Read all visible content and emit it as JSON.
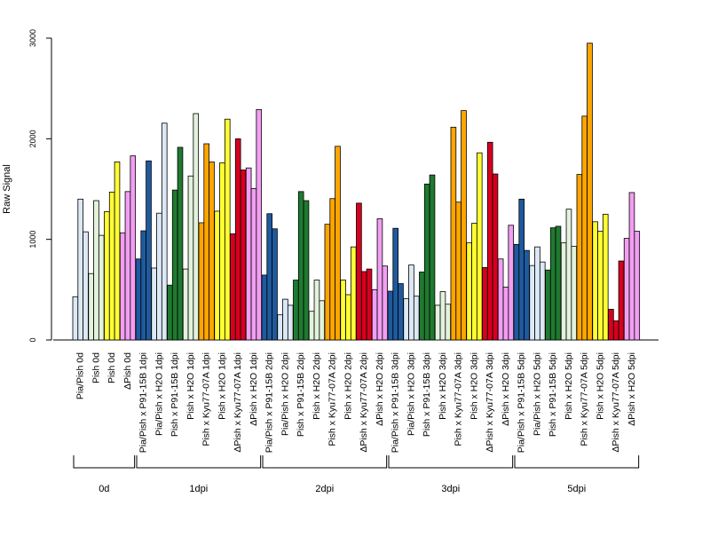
{
  "chart_data": {
    "type": "bar",
    "ylabel": "Raw Signal",
    "ylim": [
      0,
      3000
    ],
    "yticks": [
      "0",
      "1000",
      "2000",
      "3000"
    ],
    "colors": {
      "light_blue": "#dce8f5",
      "dark_blue": "#1f5a9e",
      "green": "#1f7a30",
      "light_green": "#e3f2dc",
      "orange": "#ffa500",
      "yellow": "#ffff33",
      "red": "#d7001e",
      "pink": "#f29ef2"
    },
    "categories": [
      {
        "label": "Pia/Pish 0d",
        "values": [
          430,
          1400,
          1075
        ],
        "color": "light_blue"
      },
      {
        "label": "Pish 0d",
        "values": [
          660,
          1385,
          1040
        ],
        "color": "light_green"
      },
      {
        "label": "Pish 0d",
        "values": [
          1275,
          1470,
          1770
        ],
        "color": "yellow"
      },
      {
        "label": "ΔPish 0d",
        "values": [
          1065,
          1475,
          1830
        ],
        "color": "pink"
      },
      {
        "label": "Pia/Pish x P91-15B 1dpi",
        "values": [
          805,
          1085,
          1780
        ],
        "color": "dark_blue"
      },
      {
        "label": "Pia/Pish x H2O 1dpi",
        "values": [
          715,
          1260,
          2155
        ],
        "color": "light_blue"
      },
      {
        "label": "Pish x P91-15B 1dpi",
        "values": [
          545,
          1490,
          1915
        ],
        "color": "green"
      },
      {
        "label": "Pish x H2O 1dpi",
        "values": [
          705,
          1630,
          2250
        ],
        "color": "light_green"
      },
      {
        "label": "Pish x Kyu77-07A 1dpi",
        "values": [
          1165,
          1950,
          1770
        ],
        "color": "orange"
      },
      {
        "label": "Pish x H2O 1dpi",
        "values": [
          1280,
          1760,
          2195
        ],
        "color": "yellow"
      },
      {
        "label": "ΔPish x Kyu77-07A 1dpi",
        "values": [
          1055,
          2000,
          1690
        ],
        "color": "red"
      },
      {
        "label": "ΔPish x H2O 1dpi",
        "values": [
          1710,
          1505,
          2290
        ],
        "color": "pink"
      },
      {
        "label": "Pia/Pish x P91-15B 2dpi",
        "values": [
          645,
          1255,
          1105
        ],
        "color": "dark_blue"
      },
      {
        "label": "Pia/Pish x H2O 2dpi",
        "values": [
          250,
          405,
          345
        ],
        "color": "light_blue"
      },
      {
        "label": "Pish x P91-15B 2dpi",
        "values": [
          595,
          1475,
          1385
        ],
        "color": "green"
      },
      {
        "label": "Pish x H2O 2dpi",
        "values": [
          285,
          595,
          390
        ],
        "color": "light_green"
      },
      {
        "label": "Pish x Kyu77-07A 2dpi",
        "values": [
          1150,
          1405,
          1925
        ],
        "color": "orange"
      },
      {
        "label": "Pish x H2O 2dpi",
        "values": [
          595,
          450,
          925
        ],
        "color": "yellow"
      },
      {
        "label": "ΔPish x Kyu77-07A 2dpi",
        "values": [
          1360,
          680,
          705
        ],
        "color": "red"
      },
      {
        "label": "ΔPish x H2O 2dpi",
        "values": [
          500,
          1205,
          735
        ],
        "color": "pink"
      },
      {
        "label": "Pia/Pish x P91-15B 3dpi",
        "values": [
          485,
          1110,
          560
        ],
        "color": "dark_blue"
      },
      {
        "label": "Pia/Pish x H2O 3dpi",
        "values": [
          410,
          745,
          435
        ],
        "color": "light_blue"
      },
      {
        "label": "Pish x P91-15B 3dpi",
        "values": [
          675,
          1550,
          1640
        ],
        "color": "green"
      },
      {
        "label": "Pish x H2O 3dpi",
        "values": [
          345,
          480,
          355
        ],
        "color": "light_green"
      },
      {
        "label": "Pish x Kyu77-07A 3dpi",
        "values": [
          2115,
          1370,
          2280
        ],
        "color": "orange"
      },
      {
        "label": "Pish x H2O 3dpi",
        "values": [
          965,
          1160,
          1860
        ],
        "color": "yellow"
      },
      {
        "label": "ΔPish x Kyu77-07A 3dpi",
        "values": [
          720,
          1965,
          1650
        ],
        "color": "red"
      },
      {
        "label": "ΔPish x H2O 3dpi",
        "values": [
          805,
          525,
          1140
        ],
        "color": "pink"
      },
      {
        "label": "Pia/Pish x P91-15B 5dpi",
        "values": [
          950,
          1400,
          890
        ],
        "color": "dark_blue"
      },
      {
        "label": "Pia/Pish x H2O 5dpi",
        "values": [
          740,
          925,
          775
        ],
        "color": "light_blue"
      },
      {
        "label": "Pish x P91-15B 5dpi",
        "values": [
          695,
          1115,
          1130
        ],
        "color": "green"
      },
      {
        "label": "Pish x H2O 5dpi",
        "values": [
          965,
          1300,
          930
        ],
        "color": "light_green"
      },
      {
        "label": "Pish x Kyu77-07A 5dpi",
        "values": [
          1645,
          2225,
          2950
        ],
        "color": "orange"
      },
      {
        "label": "Pish x H2O 5dpi",
        "values": [
          1175,
          1080,
          1250
        ],
        "color": "yellow"
      },
      {
        "label": "ΔPish x Kyu77-07A 5dpi",
        "values": [
          305,
          190,
          785
        ],
        "color": "red"
      },
      {
        "label": "ΔPish x H2O 5dpi",
        "values": [
          1010,
          1465,
          1080
        ],
        "color": "pink"
      }
    ],
    "groups": [
      {
        "label": "0d",
        "count": 4
      },
      {
        "label": "1dpi",
        "count": 8
      },
      {
        "label": "2dpi",
        "count": 8
      },
      {
        "label": "3dpi",
        "count": 8
      },
      {
        "label": "5dpi",
        "count": 8
      }
    ],
    "legend": "none",
    "grid": false
  }
}
